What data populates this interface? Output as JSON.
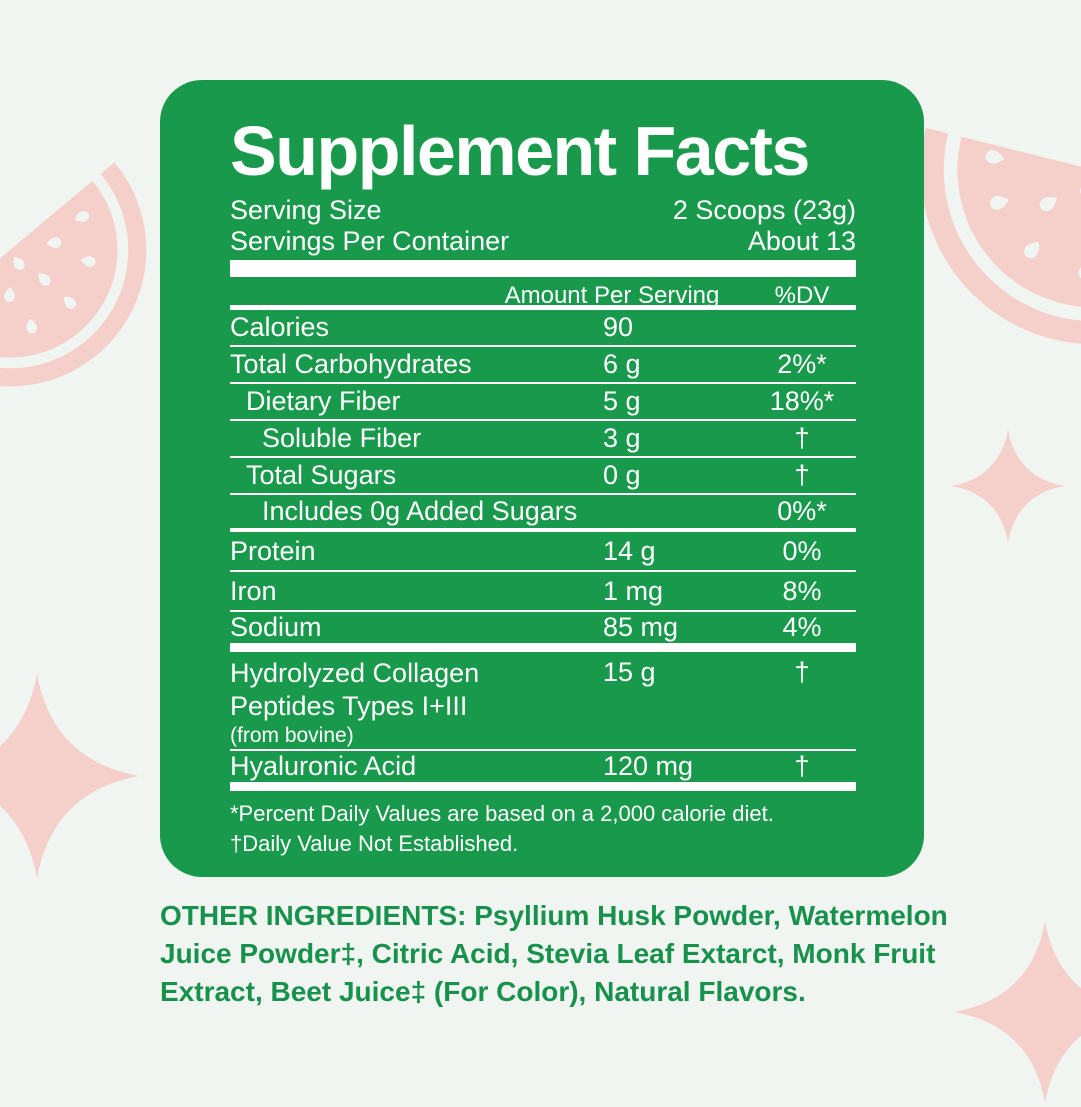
{
  "colors": {
    "card_green": "#18994B",
    "page_background": "#F0F5F1",
    "decoration_pink": "#F5CFCA",
    "ingredients_green": "#17914C",
    "text_white": "#FFFFFF"
  },
  "supplement_facts": {
    "title": "Supplement Facts",
    "serving_size": {
      "label": "Serving Size",
      "value": "2 Scoops (23g)"
    },
    "servings_per_container": {
      "label": "Servings Per Container",
      "value": "About 13"
    },
    "column_headers": {
      "amount": "Amount Per Serving",
      "dv": "%DV"
    },
    "rows": [
      {
        "name": "Calories",
        "amount": "90",
        "dv": "",
        "indent": 0,
        "sep": "thin"
      },
      {
        "name": "Total Carbohydrates",
        "amount": "6 g",
        "dv": "2%*",
        "indent": 0,
        "sep": "thin"
      },
      {
        "name": "Dietary Fiber",
        "amount": "5 g",
        "dv": "18%*",
        "indent": 1,
        "sep": "thin"
      },
      {
        "name": "Soluble Fiber",
        "amount": "3 g",
        "dv": "†",
        "indent": 2,
        "sep": "thin"
      },
      {
        "name": "Total Sugars",
        "amount": "0 g",
        "dv": "†",
        "indent": 1,
        "sep": "thin"
      },
      {
        "name": "Includes 0g Added Sugars",
        "amount": "",
        "dv": "0%*",
        "indent": 2,
        "sep": "medium"
      },
      {
        "name": "Protein",
        "amount": "14 g",
        "dv": "0%",
        "indent": 0,
        "sep": "thin",
        "tall": true
      },
      {
        "name": "Iron",
        "amount": "1 mg",
        "dv": "8%",
        "indent": 0,
        "sep": "thin",
        "tall": true
      },
      {
        "name": "Sodium",
        "amount": "85 mg",
        "dv": "4%",
        "indent": 0,
        "sep": "thick",
        "tall": true
      },
      {
        "name": "Hydrolyzed Collagen Peptides Types I+III",
        "subnote": "(from bovine)",
        "amount": "15 g",
        "dv": "†",
        "indent": 0,
        "sep": "thin",
        "multiline": true
      },
      {
        "name": "Hyaluronic Acid",
        "amount": "120 mg",
        "dv": "†",
        "indent": 0,
        "sep": "thick",
        "tall": true
      }
    ],
    "footnotes": [
      "*Percent Daily Values are based on a 2,000 calorie diet.",
      "†Daily Value Not Established."
    ]
  },
  "other_ingredients": "OTHER INGREDIENTS: Psyllium Husk Powder, Watermelon Juice Powder‡, Citric Acid, Stevia Leaf Extarct, Monk Fruit Extract, Beet Juice‡ (For Color), Natural Flavors.",
  "decorations": [
    {
      "name": "watermelon-slice-icon",
      "position": "left"
    },
    {
      "name": "watermelon-slice-icon",
      "position": "top-right"
    },
    {
      "name": "sparkle-icon",
      "position": "left-middle"
    },
    {
      "name": "sparkle-icon",
      "position": "right-middle"
    },
    {
      "name": "sparkle-icon",
      "position": "bottom-right"
    }
  ]
}
